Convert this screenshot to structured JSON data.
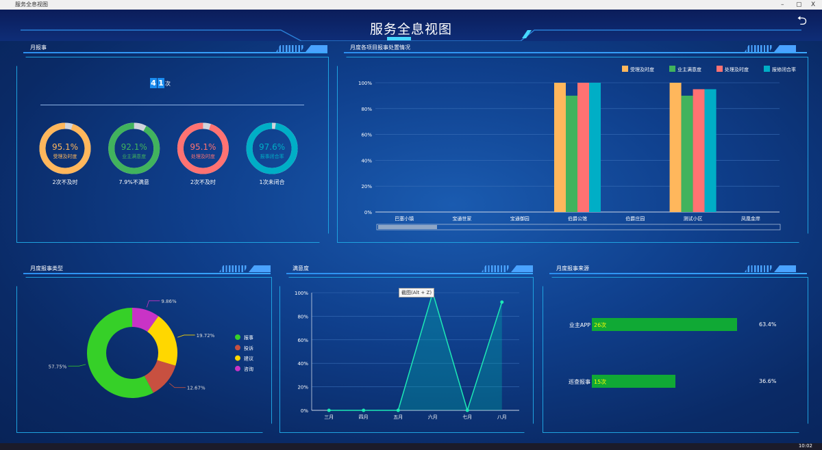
{
  "window": {
    "title": "服务全息视图",
    "controls": [
      "–",
      "▢",
      "X"
    ]
  },
  "header": {
    "title": "服务全息视图",
    "back_icon": "undo-arrow-icon"
  },
  "colors": {
    "accent": "#1fa3e0",
    "orange": "#ffb75c",
    "green": "#41b35d",
    "red": "#ff7272",
    "teal": "#00aec6"
  },
  "panel1": {
    "title": "月报事",
    "count_digits": [
      "4",
      "1"
    ],
    "count_unit": "次",
    "gauges": [
      {
        "value": 95.1,
        "text": "95.1%",
        "label": "受理及时度",
        "footer": "2次不及时",
        "color": "#ffb75c"
      },
      {
        "value": 92.1,
        "text": "92.1%",
        "label": "业主满意度",
        "footer": "7.9%不满意",
        "color": "#41b35d"
      },
      {
        "value": 95.1,
        "text": "95.1%",
        "label": "处理及时度",
        "footer": "2次不及时",
        "color": "#ff7272"
      },
      {
        "value": 97.6,
        "text": "97.6%",
        "label": "报事闭合率",
        "footer": "1次未闭合",
        "color": "#00aec6"
      }
    ]
  },
  "panel2": {
    "title": "月度各项目报事处置情况"
  },
  "panel3": {
    "title": "月度报事类型"
  },
  "panel4": {
    "title": "满意度",
    "tooltip": "截图(Alt + Z)"
  },
  "panel5": {
    "title": "月度报事来源",
    "rows": [
      {
        "label": "业主APP",
        "count": 26,
        "text": "26次",
        "percent": "63.4%"
      },
      {
        "label": "巡查报事",
        "count": 15,
        "text": "15次",
        "percent": "36.6%"
      }
    ],
    "bar_color": "#10a935",
    "count_color": "#ffff00"
  },
  "taskbar": {
    "time": "10:02"
  },
  "chart_data": [
    {
      "type": "bar",
      "categories": [
        "巴塞小镇",
        "宝通世家",
        "宝通御园",
        "伯爵公馆",
        "伯爵庄园",
        "测试小区",
        "凤凰金岸"
      ],
      "series": [
        {
          "name": "受理及时度",
          "color": "#ffb75c",
          "values": [
            0,
            0,
            0,
            100,
            0,
            100,
            0
          ]
        },
        {
          "name": "业主满意度",
          "color": "#41b35d",
          "values": [
            0,
            0,
            0,
            90,
            0,
            90,
            0
          ]
        },
        {
          "name": "处理及时度",
          "color": "#ff7272",
          "values": [
            0,
            0,
            0,
            100,
            0,
            95,
            0
          ]
        },
        {
          "name": "报修闭合率",
          "color": "#00aec6",
          "values": [
            0,
            0,
            0,
            100,
            0,
            95,
            0
          ]
        }
      ],
      "yticks": [
        "0%",
        "20%",
        "40%",
        "60%",
        "80%",
        "100%"
      ],
      "ylim": [
        0,
        100
      ],
      "legend": "top-right",
      "grid": true,
      "datazoom": true
    },
    {
      "type": "pie",
      "donut": true,
      "slices": [
        {
          "name": "咨询",
          "value": 9.86,
          "label": "9.86%",
          "color": "#c933c6"
        },
        {
          "name": "建议",
          "value": 19.72,
          "label": "19.72%",
          "color": "#ffd700"
        },
        {
          "name": "投诉",
          "value": 12.67,
          "label": "12.67%",
          "color": "#c85040"
        },
        {
          "name": "报事",
          "value": 57.75,
          "label": "57.75%",
          "color": "#36d028"
        }
      ],
      "legend_order": [
        "报事",
        "投诉",
        "建议",
        "咨询"
      ],
      "legend": "right"
    },
    {
      "type": "area",
      "categories": [
        "三月",
        "四月",
        "五月",
        "六月",
        "七月",
        "八月"
      ],
      "values": [
        0,
        0,
        0,
        100,
        0,
        92
      ],
      "yticks": [
        "0%",
        "20%",
        "40%",
        "60%",
        "80%",
        "100%"
      ],
      "ylim": [
        0,
        100
      ],
      "color": "#1de9b6",
      "grid": true
    }
  ]
}
